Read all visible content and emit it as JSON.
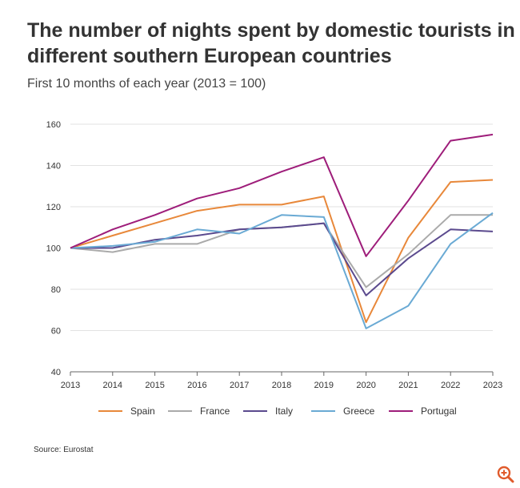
{
  "chart_data": {
    "type": "line",
    "title": "The number of nights spent by domestic tourists in different southern European countries",
    "subtitle": "First 10 months of each year (2013 = 100)",
    "xlabel": "",
    "ylabel": "",
    "x": [
      "2013",
      "2014",
      "2015",
      "2016",
      "2017",
      "2018",
      "2019",
      "2020",
      "2021",
      "2022",
      "2023"
    ],
    "ylim": [
      40,
      160
    ],
    "yticks": [
      40,
      60,
      80,
      100,
      120,
      140,
      160
    ],
    "grid": true,
    "legend_position": "bottom",
    "series": [
      {
        "name": "Spain",
        "color": "#e8883a",
        "values": [
          100,
          106,
          112,
          118,
          121,
          121,
          125,
          64,
          105,
          132,
          133
        ]
      },
      {
        "name": "France",
        "color": "#aaaaaa",
        "values": [
          100,
          98,
          102,
          102,
          109,
          110,
          112,
          81,
          97,
          116,
          116
        ]
      },
      {
        "name": "Italy",
        "color": "#5b4a8e",
        "values": [
          100,
          100,
          104,
          106,
          109,
          110,
          112,
          77,
          95,
          109,
          108
        ]
      },
      {
        "name": "Greece",
        "color": "#6aaad4",
        "values": [
          100,
          101,
          103,
          109,
          107,
          116,
          115,
          61,
          72,
          102,
          117
        ]
      },
      {
        "name": "Portugal",
        "color": "#9e1d7a",
        "values": [
          100,
          109,
          116,
          124,
          129,
          137,
          144,
          96,
          123,
          152,
          155
        ]
      }
    ]
  },
  "source": "Source: Eurostat",
  "zoom_icon": "zoom-in-icon",
  "zoom_color": "#e05a2b"
}
